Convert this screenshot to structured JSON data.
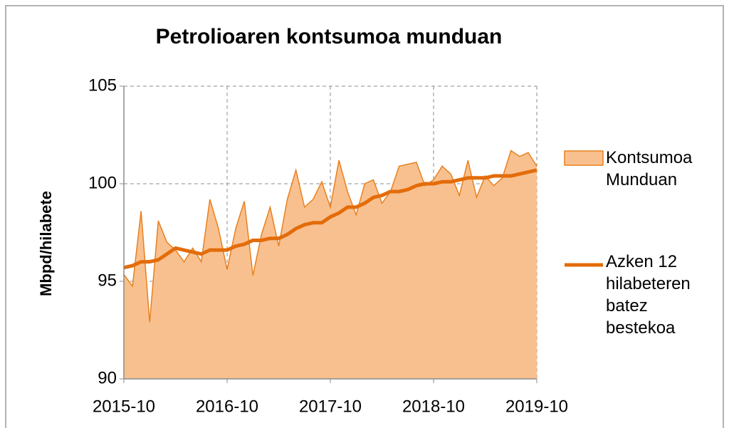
{
  "chart_data": {
    "type": "area",
    "title": "Petrolioaren kontsumoa munduan",
    "y_label": "Mbpd/hilabete",
    "categories": [
      "2015-10",
      null,
      null,
      null,
      null,
      null,
      null,
      null,
      null,
      null,
      null,
      null,
      "2016-10",
      null,
      null,
      null,
      null,
      null,
      null,
      null,
      null,
      null,
      null,
      null,
      "2017-10",
      null,
      null,
      null,
      null,
      null,
      null,
      null,
      null,
      null,
      null,
      null,
      "2018-10",
      null,
      null,
      null,
      null,
      null,
      null,
      null,
      null,
      null,
      null,
      null,
      "2019-10"
    ],
    "series": [
      {
        "name": "Kontsumoa Munduan",
        "style": "area",
        "color": "#f9c08f",
        "edge_color": "#e8801f",
        "values": [
          95.35,
          94.75,
          98.6,
          92.9,
          98.1,
          97.0,
          96.6,
          96.0,
          96.7,
          96.0,
          99.2,
          97.7,
          95.6,
          97.7,
          99.1,
          95.3,
          97.4,
          98.8,
          96.8,
          99.2,
          100.7,
          98.8,
          99.2,
          100.1,
          98.8,
          101.2,
          99.6,
          98.4,
          100.0,
          100.2,
          99.0,
          99.6,
          100.9,
          101.0,
          101.1,
          99.9,
          100.2,
          100.9,
          100.5,
          99.4,
          101.2,
          99.3,
          100.4,
          99.9,
          100.3,
          101.7,
          101.4,
          101.6,
          100.9
        ]
      },
      {
        "name": "Azken 12 hilabeteren batez bestekoa",
        "style": "line",
        "color": "#e36c0a",
        "values": [
          95.7,
          95.8,
          96.0,
          96.0,
          96.1,
          96.4,
          96.7,
          96.6,
          96.5,
          96.4,
          96.6,
          96.6,
          96.6,
          96.8,
          96.9,
          97.1,
          97.1,
          97.2,
          97.2,
          97.4,
          97.7,
          97.9,
          98.0,
          98.0,
          98.3,
          98.5,
          98.8,
          98.8,
          99.0,
          99.3,
          99.4,
          99.6,
          99.6,
          99.7,
          99.9,
          100.0,
          100.0,
          100.1,
          100.1,
          100.2,
          100.3,
          100.3,
          100.3,
          100.4,
          100.4,
          100.4,
          100.5,
          100.6,
          100.7
        ]
      }
    ],
    "ylim": [
      90,
      105
    ],
    "yticks": [
      90,
      95,
      100,
      105
    ],
    "grid": true,
    "legend": "right"
  }
}
